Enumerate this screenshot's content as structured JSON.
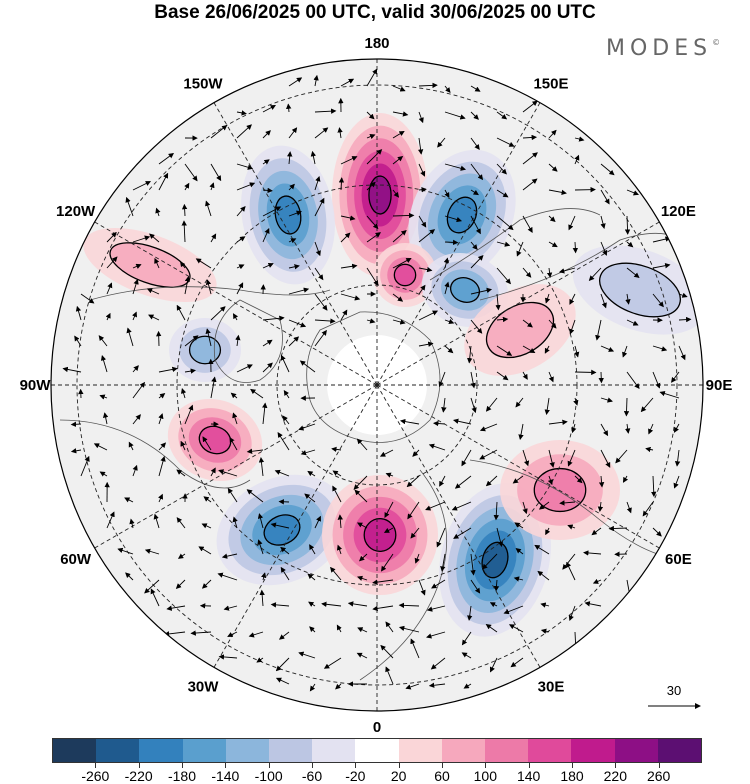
{
  "title": "Base 26/06/2025 00 UTC, valid 30/06/2025 00 UTC",
  "brand": "MODES",
  "brand_mark": "©",
  "longitude_labels": [
    "180",
    "150E",
    "120E",
    "90E",
    "60E",
    "30E",
    "0",
    "30W",
    "60W",
    "90W",
    "120W",
    "150W"
  ],
  "reference_vector": "30",
  "colorbar": {
    "ticks": [
      "-260",
      "-220",
      "-180",
      "-140",
      "-100",
      "-60",
      "-20",
      "20",
      "60",
      "100",
      "140",
      "180",
      "220",
      "260"
    ],
    "colors": [
      "#1d3a5c",
      "#1f5a8e",
      "#3381bd",
      "#5a9fce",
      "#8cb6dc",
      "#bcc6e3",
      "#e3e2f1",
      "#ffffff",
      "#fad6d8",
      "#f6a8bd",
      "#ed7aa8",
      "#e04a9b",
      "#c01b8d",
      "#8d0f85",
      "#5c0f72"
    ]
  },
  "anomaly_centers": [
    {
      "label": "positive",
      "value": 240,
      "color": "#8d0f85"
    },
    {
      "label": "negative",
      "value": -200,
      "color": "#1f5a8e"
    },
    {
      "label": "negative",
      "value": -180,
      "color": "#3381bd"
    },
    {
      "label": "positive",
      "value": 140,
      "color": "#e04a9b"
    },
    {
      "label": "negative",
      "value": -160,
      "color": "#3381bd"
    },
    {
      "label": "negative",
      "value": -120,
      "color": "#5a9fce"
    },
    {
      "label": "positive",
      "value": 140,
      "color": "#ed7aa8"
    },
    {
      "label": "negative",
      "value": -200,
      "color": "#1f5a8e"
    },
    {
      "label": "positive",
      "value": 180,
      "color": "#e04a9b"
    },
    {
      "label": "negative",
      "value": -220,
      "color": "#1f5a8e"
    },
    {
      "label": "positive",
      "value": 120,
      "color": "#ed7aa8"
    },
    {
      "label": "positive",
      "value": 80,
      "color": "#f6a8bd"
    },
    {
      "label": "negative",
      "value": -80,
      "color": "#bcc6e3"
    },
    {
      "label": "positive",
      "value": 60,
      "color": "#fad6d8"
    }
  ]
}
